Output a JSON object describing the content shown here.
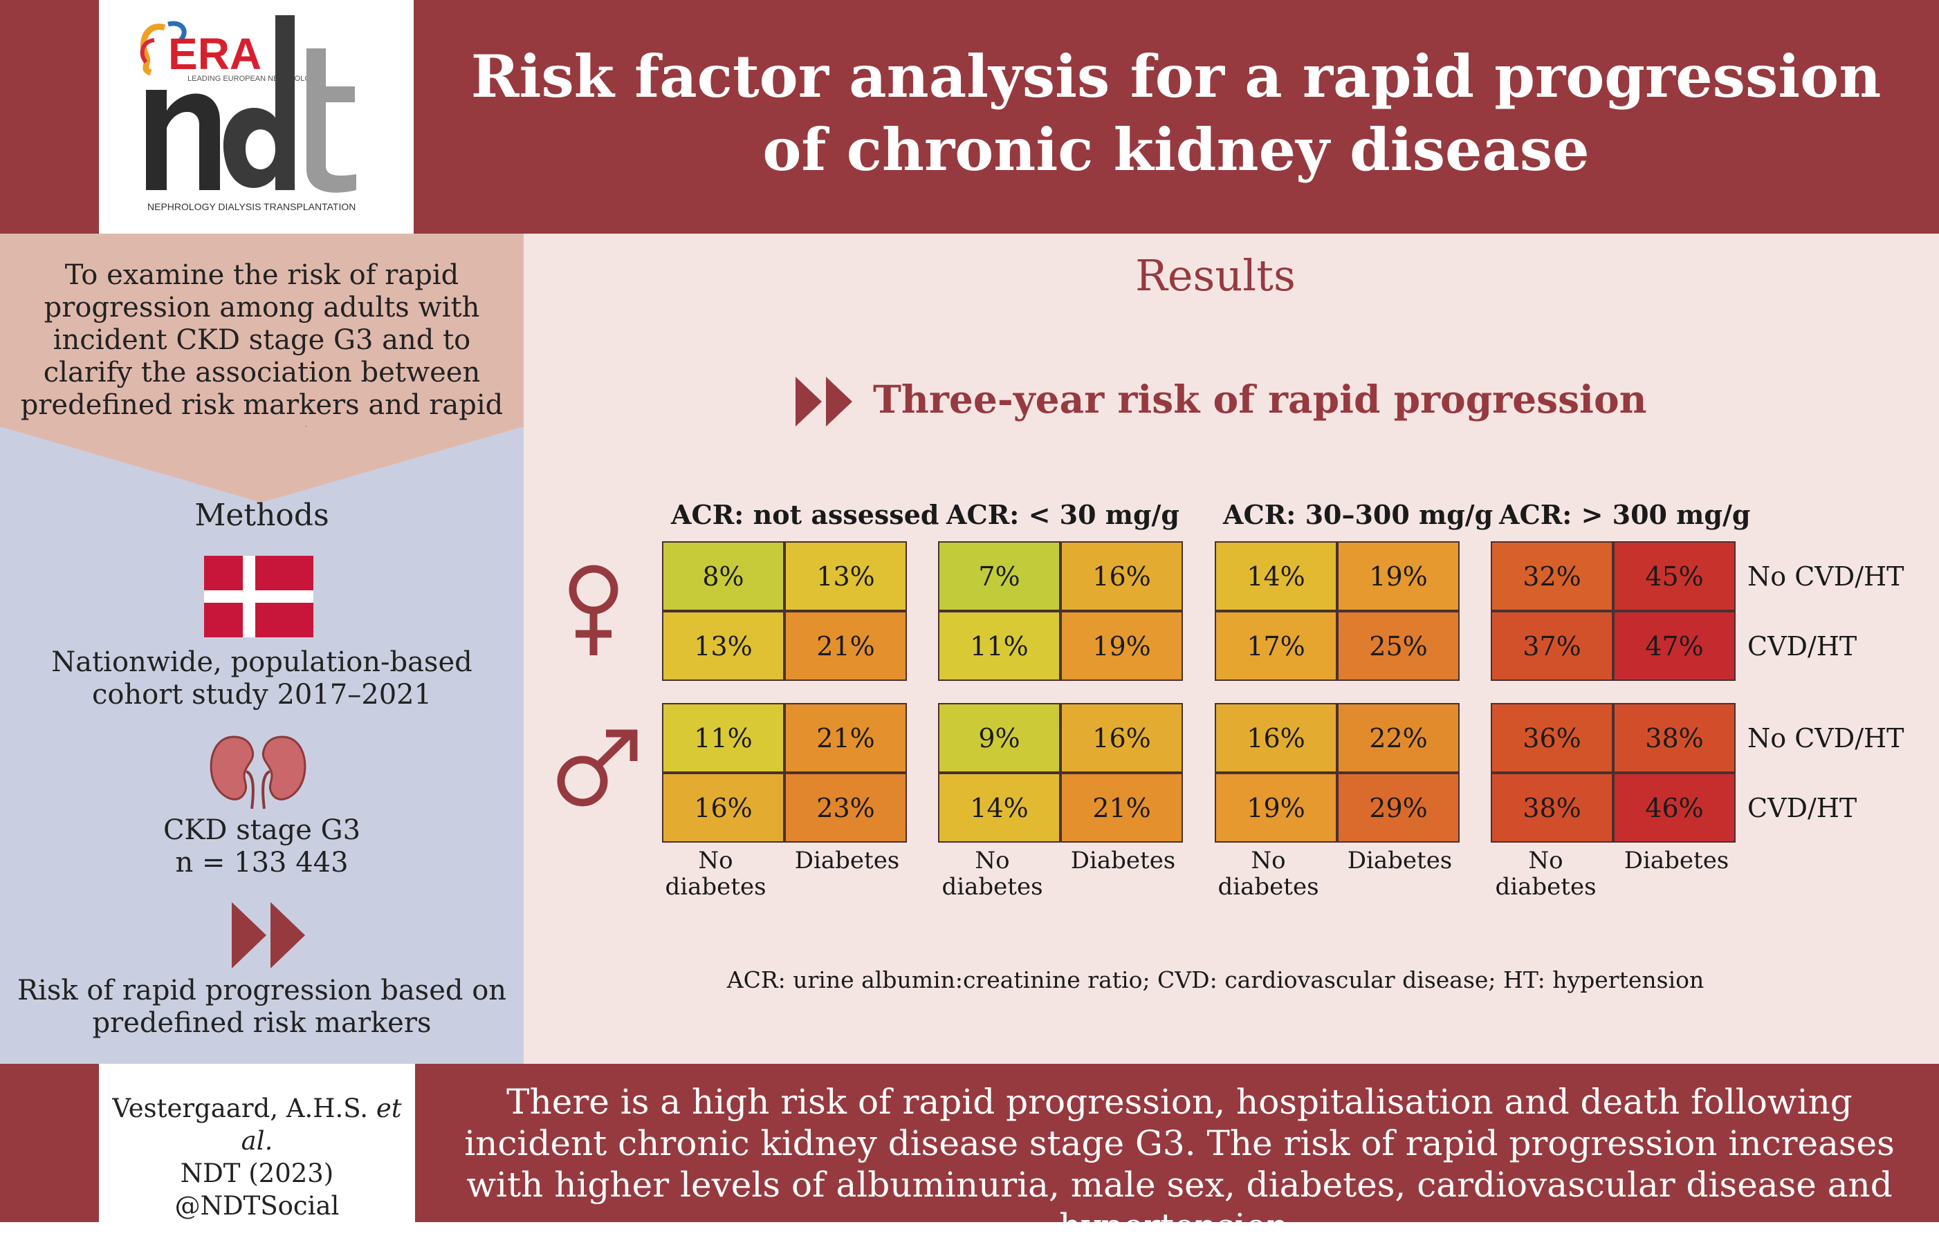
{
  "header": {
    "logo_primary": "ERA",
    "logo_tagline": "LEADING EUROPEAN NEPHROLOGY",
    "logo_wordmark": "ndt",
    "logo_subtitle": "NEPHROLOGY DIALYSIS TRANSPLANTATION",
    "title_line1": "Risk factor analysis for a rapid progression",
    "title_line2": "of chronic kidney disease"
  },
  "objective": {
    "text": "To examine the risk of rapid progression among adults with incident CKD stage G3 and to clarify the association between predefined risk markers and rapid progression"
  },
  "methods": {
    "title": "Methods",
    "flag_icon": "denmark-flag-icon",
    "study_design": "Nationwide, population-based cohort study 2017–2021",
    "kidney_icon": "kidneys-icon",
    "population_line1": "CKD stage G3",
    "population_line2": "n = 133 443",
    "outcome": "Risk of rapid progression based on predefined risk markers"
  },
  "results": {
    "title": "Results",
    "subtitle": "Three-year risk of rapid progression",
    "acr_groups": [
      "ACR: not assessed",
      "ACR: < 30 mg/g",
      "ACR: 30–300 mg/g",
      "ACR: > 300 mg/g"
    ],
    "column_labels": [
      "No diabetes",
      "Diabetes"
    ],
    "row_labels": [
      "No CVD/HT",
      "CVD/HT"
    ],
    "sex_icons": [
      "female-symbol-icon",
      "male-symbol-icon"
    ],
    "female": {
      "no_cvd_ht": [
        "8%",
        "13%",
        "7%",
        "16%",
        "14%",
        "19%",
        "32%",
        "45%"
      ],
      "cvd_ht": [
        "13%",
        "21%",
        "11%",
        "19%",
        "17%",
        "25%",
        "37%",
        "47%"
      ]
    },
    "male": {
      "no_cvd_ht": [
        "11%",
        "21%",
        "9%",
        "16%",
        "16%",
        "22%",
        "36%",
        "38%"
      ],
      "cvd_ht": [
        "16%",
        "23%",
        "14%",
        "21%",
        "19%",
        "29%",
        "38%",
        "46%"
      ]
    },
    "footnote": "ACR: urine albumin:creatinine ratio; CVD: cardiovascular disease; HT: hypertension"
  },
  "footer": {
    "citation_authors": "Vestergaard, A.H.S.",
    "citation_etal": "et al.",
    "citation_journal": "NDT (2023)",
    "citation_handle": "@NDTSocial",
    "conclusion": "There is a high risk of rapid progression, hospitalisation and death following incident chronic kidney disease stage G3. The risk of rapid progression increases with higher levels of albuminuria, male sex, diabetes, cardiovascular disease and hypertension."
  },
  "colors": {
    "brand_maroon": "#963a3f",
    "risk_low": "#c2cc3a",
    "risk_high": "#c52a2e"
  }
}
